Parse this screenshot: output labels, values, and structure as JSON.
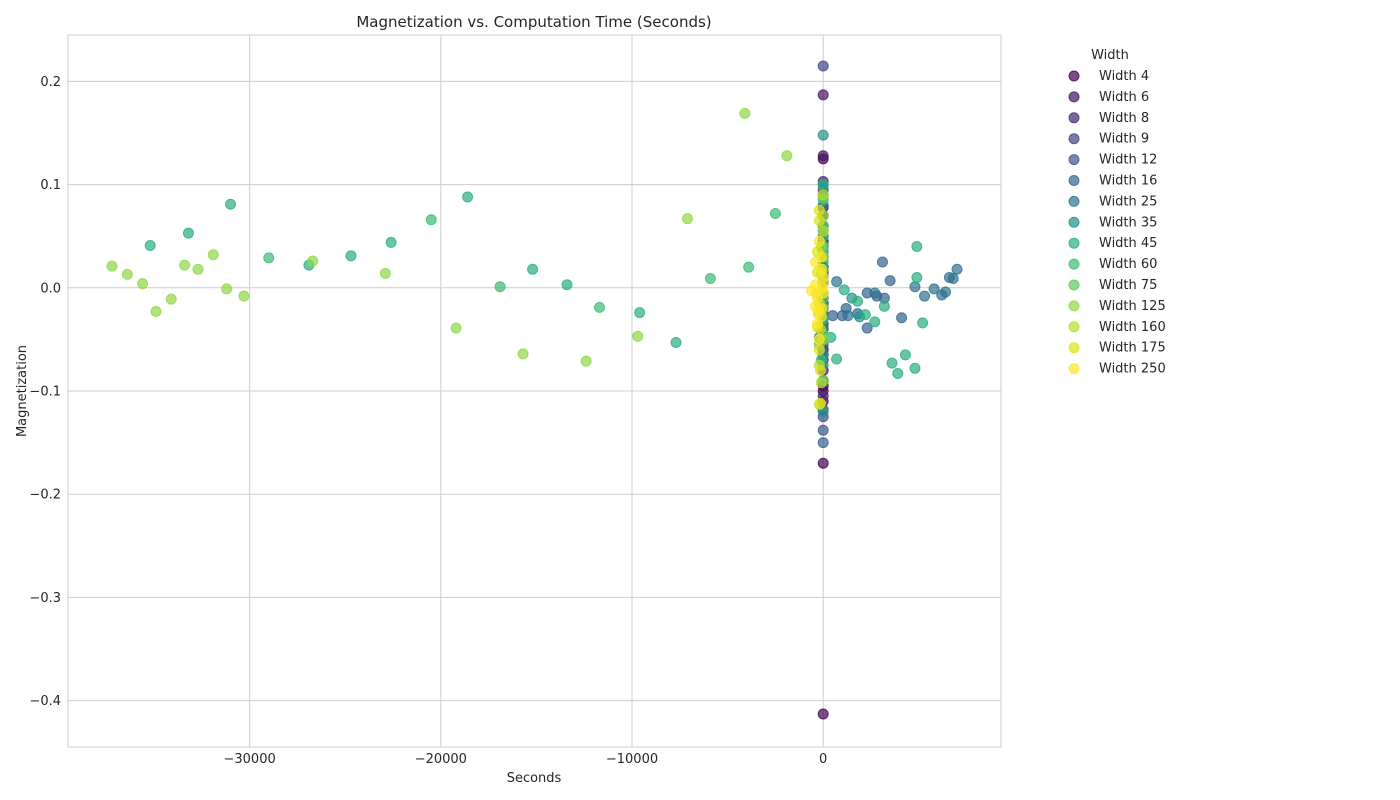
{
  "chart_data": {
    "type": "scatter",
    "title": "Magnetization vs. Computation Time (Seconds)",
    "xlabel": "Seconds",
    "ylabel": "Magnetization",
    "xlim": [
      -39500,
      9300
    ],
    "ylim": [
      -0.445,
      0.245
    ],
    "xticks": [
      -30000,
      -20000,
      -10000,
      0
    ],
    "yticks": [
      0.2,
      0.1,
      0.0,
      -0.1,
      -0.2,
      -0.3,
      -0.4
    ],
    "xtick_labels": [
      "−30000",
      "−20000",
      "−10000",
      "0"
    ],
    "ytick_labels": [
      "0.2",
      "0.1",
      "0.0",
      "−0.1",
      "−0.2",
      "−0.3",
      "−0.4"
    ],
    "grid": true,
    "legend_title": "Width",
    "legend_position": "outside-right",
    "series": [
      {
        "name": "Width 4",
        "color": "#440154",
        "points": [
          [
            0,
            -0.17
          ],
          [
            0,
            -0.413
          ],
          [
            0,
            -0.1
          ],
          [
            0,
            -0.095
          ],
          [
            0,
            0.125
          ],
          [
            0,
            0.06
          ],
          [
            0,
            0.045
          ],
          [
            0,
            0.02
          ],
          [
            0,
            -0.02
          ],
          [
            0,
            -0.06
          ]
        ]
      },
      {
        "name": "Width 6",
        "color": "#471365",
        "points": [
          [
            0,
            0.187
          ],
          [
            0,
            0.128
          ],
          [
            0,
            0.078
          ],
          [
            0,
            0.04
          ],
          [
            0,
            0.015
          ],
          [
            0,
            -0.015
          ],
          [
            0,
            -0.04
          ],
          [
            0,
            -0.08
          ],
          [
            0,
            -0.11
          ]
        ]
      },
      {
        "name": "Width 8",
        "color": "#482475",
        "points": [
          [
            0,
            0.103
          ],
          [
            0,
            0.07
          ],
          [
            0,
            0.03
          ],
          [
            0,
            0.005
          ],
          [
            0,
            -0.01
          ],
          [
            0,
            -0.035
          ],
          [
            0,
            -0.07
          ],
          [
            0,
            -0.105
          ]
        ]
      },
      {
        "name": "Width 9",
        "color": "#414487",
        "points": [
          [
            0,
            0.215
          ],
          [
            0,
            0.095
          ],
          [
            0,
            0.055
          ],
          [
            0,
            0.02
          ],
          [
            0,
            -0.005
          ],
          [
            0,
            -0.03
          ],
          [
            0,
            -0.065
          ],
          [
            0,
            -0.125
          ]
        ]
      },
      {
        "name": "Width 12",
        "color": "#3b528b",
        "points": [
          [
            0,
            -0.138
          ],
          [
            0,
            0.09
          ],
          [
            0,
            0.05
          ],
          [
            0,
            0.01
          ],
          [
            0,
            -0.025
          ],
          [
            0,
            -0.055
          ],
          [
            0,
            -0.09
          ],
          [
            0,
            -0.118
          ]
        ]
      },
      {
        "name": "Width 16",
        "color": "#33638d",
        "points": [
          [
            3100,
            0.025
          ],
          [
            3500,
            0.007
          ],
          [
            2300,
            -0.005
          ],
          [
            2800,
            -0.008
          ],
          [
            3200,
            -0.01
          ],
          [
            4100,
            -0.029
          ],
          [
            2300,
            -0.039
          ],
          [
            1800,
            -0.025
          ],
          [
            1200,
            -0.02
          ],
          [
            1000,
            -0.027
          ],
          [
            500,
            -0.027
          ],
          [
            0,
            -0.15
          ],
          [
            0,
            0.08
          ],
          [
            0,
            -0.05
          ]
        ]
      },
      {
        "name": "Width 25",
        "color": "#2c728e",
        "points": [
          [
            5800,
            -0.001
          ],
          [
            6200,
            -0.007
          ],
          [
            6600,
            0.01
          ],
          [
            7000,
            0.018
          ],
          [
            6800,
            0.009
          ],
          [
            6400,
            -0.004
          ],
          [
            5300,
            -0.008
          ],
          [
            4800,
            0.001
          ],
          [
            2700,
            -0.005
          ],
          [
            1300,
            -0.027
          ],
          [
            700,
            0.006
          ],
          [
            0,
            0.042
          ],
          [
            -200,
            -0.048
          ]
        ]
      },
      {
        "name": "Width 35",
        "color": "#21918c",
        "points": [
          [
            0,
            0.1
          ],
          [
            0,
            0.148
          ],
          [
            0,
            0.06
          ],
          [
            0,
            0.035
          ],
          [
            0,
            0.012
          ],
          [
            0,
            -0.018
          ],
          [
            0,
            -0.038
          ],
          [
            0,
            -0.065
          ],
          [
            0,
            -0.12
          ],
          [
            1500,
            -0.01
          ],
          [
            1900,
            -0.028
          ],
          [
            0,
            -0.075
          ]
        ]
      },
      {
        "name": "Width 45",
        "color": "#28ae80",
        "points": [
          [
            -35200,
            0.041
          ],
          [
            -31000,
            0.081
          ],
          [
            -33200,
            0.053
          ],
          [
            -26900,
            0.022
          ],
          [
            -24700,
            0.031
          ],
          [
            -22600,
            0.044
          ],
          [
            -18600,
            0.088
          ],
          [
            -15200,
            0.018
          ],
          [
            -13400,
            0.003
          ],
          [
            -9600,
            -0.024
          ],
          [
            -7700,
            -0.053
          ],
          [
            4900,
            0.04
          ],
          [
            4900,
            0.01
          ],
          [
            5200,
            -0.034
          ],
          [
            4300,
            -0.065
          ],
          [
            3600,
            -0.073
          ],
          [
            3900,
            -0.083
          ],
          [
            4800,
            -0.078
          ],
          [
            2700,
            -0.033
          ],
          [
            3200,
            -0.018
          ],
          [
            2200,
            -0.026
          ],
          [
            1800,
            -0.013
          ],
          [
            1100,
            -0.002
          ],
          [
            700,
            -0.069
          ],
          [
            400,
            -0.048
          ],
          [
            0,
            0.1
          ],
          [
            0,
            0.025
          ]
        ]
      },
      {
        "name": "Width 60",
        "color": "#3bbb75",
        "points": [
          [
            -29000,
            0.029
          ],
          [
            -20500,
            0.066
          ],
          [
            -16900,
            0.001
          ],
          [
            -11700,
            -0.019
          ],
          [
            -5900,
            0.009
          ],
          [
            -3900,
            0.02
          ],
          [
            -2500,
            0.072
          ],
          [
            0,
            0.085
          ],
          [
            0,
            0.05
          ],
          [
            0,
            -0.005
          ],
          [
            0,
            -0.03
          ],
          [
            -100,
            -0.07
          ]
        ]
      },
      {
        "name": "Width 75",
        "color": "#5ec962",
        "points": [
          [
            0,
            0.087
          ],
          [
            0,
            0.04
          ],
          [
            0,
            0.018
          ],
          [
            0,
            -0.01
          ],
          [
            0,
            -0.045
          ],
          [
            0,
            -0.09
          ],
          [
            -200,
            -0.055
          ],
          [
            0,
            0.06
          ]
        ]
      },
      {
        "name": "Width 125",
        "color": "#8fd744",
        "points": [
          [
            -37200,
            0.021
          ],
          [
            -36400,
            0.013
          ],
          [
            -35600,
            0.004
          ],
          [
            -34900,
            -0.023
          ],
          [
            -34100,
            -0.011
          ],
          [
            -33400,
            0.022
          ],
          [
            -32700,
            0.018
          ],
          [
            -31900,
            0.032
          ],
          [
            -31200,
            -0.001
          ],
          [
            -30300,
            -0.008
          ],
          [
            -26700,
            0.026
          ],
          [
            -22900,
            0.014
          ],
          [
            -19200,
            -0.039
          ],
          [
            -15700,
            -0.064
          ],
          [
            -12400,
            -0.071
          ],
          [
            -9700,
            -0.047
          ],
          [
            -7100,
            0.067
          ],
          [
            -4100,
            0.169
          ],
          [
            -1900,
            0.128
          ],
          [
            0,
            0.07
          ],
          [
            0,
            0.03
          ],
          [
            0,
            -0.02
          ],
          [
            0,
            -0.05
          ],
          [
            -100,
            0.04
          ]
        ]
      },
      {
        "name": "Width 160",
        "color": "#b5de2b",
        "points": [
          [
            0,
            0.09
          ],
          [
            0,
            0.055
          ],
          [
            -100,
            0.015
          ],
          [
            -200,
            -0.015
          ],
          [
            -150,
            -0.04
          ],
          [
            -200,
            -0.075
          ],
          [
            -100,
            -0.092
          ],
          [
            -200,
            -0.113
          ],
          [
            0,
            0.005
          ]
        ]
      },
      {
        "name": "Width 175",
        "color": "#dde318",
        "points": [
          [
            -200,
            0.075
          ],
          [
            -200,
            0.065
          ],
          [
            -300,
            0.035
          ],
          [
            -300,
            0.015
          ],
          [
            -350,
            -0.005
          ],
          [
            -250,
            -0.025
          ],
          [
            -300,
            -0.038
          ],
          [
            -200,
            -0.06
          ],
          [
            -150,
            -0.08
          ],
          [
            -150,
            -0.112
          ]
        ]
      },
      {
        "name": "Width 250",
        "color": "#fde725",
        "points": [
          [
            -400,
            0.025
          ],
          [
            -200,
            0.045
          ],
          [
            -100,
            0.03
          ],
          [
            -100,
            0.018
          ],
          [
            0,
            0.01
          ],
          [
            -400,
            0.003
          ],
          [
            -600,
            -0.003
          ],
          [
            -300,
            -0.01
          ],
          [
            -400,
            -0.018
          ],
          [
            -250,
            -0.022
          ],
          [
            -100,
            -0.028
          ],
          [
            -300,
            -0.035
          ],
          [
            -200,
            -0.05
          ],
          [
            -100,
            -0.02
          ],
          [
            0,
            -0.005
          ],
          [
            -50,
            0.0
          ]
        ]
      }
    ]
  }
}
